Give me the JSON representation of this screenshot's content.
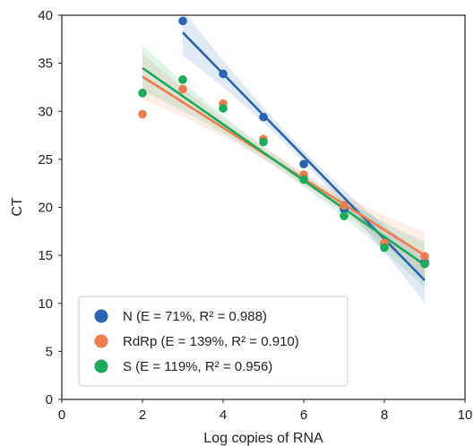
{
  "chart_data": {
    "type": "scatter",
    "xlabel": "Log copies of RNA",
    "ylabel": "CT",
    "xlim": [
      0,
      10
    ],
    "ylim": [
      0,
      40
    ],
    "xticks": [
      0,
      2,
      4,
      6,
      8,
      10
    ],
    "yticks": [
      0,
      5,
      10,
      15,
      20,
      25,
      30,
      35,
      40
    ],
    "grid": false,
    "legend_position": "bottom-left",
    "series": [
      {
        "name": "N",
        "legend_label": "N (E = 71%, R² = 0.988)",
        "color": "#2a64b0",
        "points": [
          [
            3,
            39.4
          ],
          [
            4,
            33.9
          ],
          [
            5,
            29.4
          ],
          [
            6,
            24.5
          ],
          [
            7,
            19.8
          ],
          [
            8,
            16.2
          ],
          [
            9,
            14.3
          ]
        ],
        "fit": {
          "x": [
            3,
            9
          ],
          "y": [
            38.2,
            12.4
          ]
        }
      },
      {
        "name": "RdRp",
        "legend_label": "RdRp (E = 139%, R² = 0.910)",
        "color": "#ef7d4f",
        "points": [
          [
            2,
            29.7
          ],
          [
            3,
            32.3
          ],
          [
            4,
            30.8
          ],
          [
            5,
            27.1
          ],
          [
            6,
            23.4
          ],
          [
            7,
            20.2
          ],
          [
            8,
            16.3
          ],
          [
            9,
            14.9
          ]
        ],
        "fit": {
          "x": [
            2,
            9
          ],
          "y": [
            33.6,
            15.0
          ]
        }
      },
      {
        "name": "S",
        "legend_label": "S (E = 119%, R² = 0.956)",
        "color": "#1daa5b",
        "points": [
          [
            2,
            31.9
          ],
          [
            3,
            33.3
          ],
          [
            4,
            30.3
          ],
          [
            5,
            26.8
          ],
          [
            6,
            22.9
          ],
          [
            7,
            19.1
          ],
          [
            8,
            15.8
          ],
          [
            9,
            14.1
          ]
        ],
        "fit": {
          "x": [
            2,
            9
          ],
          "y": [
            34.5,
            14.0
          ]
        }
      }
    ]
  }
}
